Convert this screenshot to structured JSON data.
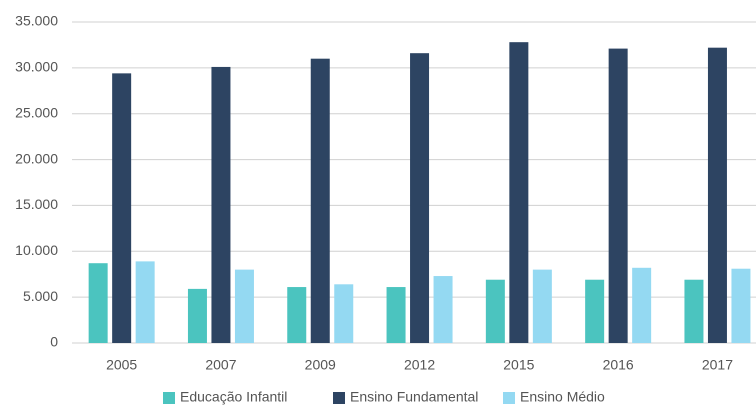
{
  "chart_data": {
    "type": "bar",
    "categories": [
      "2005",
      "2007",
      "2009",
      "2012",
      "2015",
      "2016",
      "2017"
    ],
    "series": [
      {
        "name": "Educação Infantil",
        "color": "#4bc4bf",
        "values": [
          8700,
          5900,
          6100,
          6100,
          6900,
          6900,
          6900
        ]
      },
      {
        "name": "Ensino Fundamental",
        "color": "#2d4462",
        "values": [
          29400,
          30100,
          31000,
          31600,
          32800,
          32100,
          32200
        ]
      },
      {
        "name": "Ensino Médio",
        "color": "#94d9f2",
        "values": [
          8900,
          8000,
          6400,
          7300,
          8000,
          8200,
          8100
        ]
      }
    ],
    "ylim": [
      0,
      35000
    ],
    "yticks": [
      0,
      {
        "value": 5000,
        "label": "5.000"
      },
      {
        "value": 10000,
        "label": "10.000"
      },
      {
        "value": 15000,
        "label": "15.000"
      },
      {
        "value": 20000,
        "label": "20.000"
      },
      {
        "value": 25000,
        "label": "25.000"
      },
      {
        "value": 30000,
        "label": "30.000"
      },
      {
        "value": 35000,
        "label": "35.000"
      }
    ],
    "grid": true,
    "legend": "bottom"
  }
}
